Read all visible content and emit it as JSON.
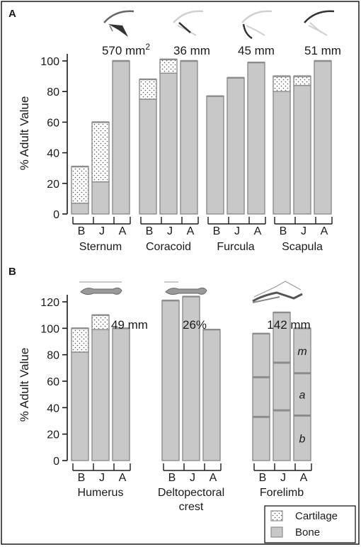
{
  "panels": [
    {
      "label": "A",
      "ylabel": "% Adult Value",
      "ylim": [
        0,
        100
      ],
      "yticks": [
        0,
        20,
        40,
        60,
        80,
        100
      ]
    },
    {
      "label": "B",
      "ylabel": "% Adult Value",
      "ylim": [
        0,
        120
      ],
      "yticks": [
        0,
        20,
        40,
        60,
        80,
        100,
        120
      ]
    }
  ],
  "legend": {
    "items": [
      "Cartilage",
      "Bone"
    ],
    "position": "bottom-right"
  },
  "chart_data": [
    {
      "type": "bar",
      "panel": "A",
      "ylabel": "% Adult Value",
      "ylim": [
        0,
        100
      ],
      "stacked_components": [
        "Bone",
        "Cartilage"
      ],
      "groups": [
        {
          "name": "Sternum",
          "annotation": "570 mm²",
          "categories": [
            "B",
            "J",
            "A"
          ],
          "bone": [
            7,
            21,
            100
          ],
          "cartilage": [
            24,
            39,
            0
          ]
        },
        {
          "name": "Coracoid",
          "annotation": "36 mm",
          "categories": [
            "B",
            "J",
            "A"
          ],
          "bone": [
            75,
            92,
            100
          ],
          "cartilage": [
            13,
            9,
            0
          ]
        },
        {
          "name": "Furcula",
          "annotation": "45 mm",
          "categories": [
            "B",
            "J",
            "A"
          ],
          "bone": [
            77,
            89,
            99
          ],
          "cartilage": [
            0,
            0,
            0
          ]
        },
        {
          "name": "Scapula",
          "annotation": "51 mm",
          "categories": [
            "B",
            "J",
            "A"
          ],
          "bone": [
            80,
            84,
            100
          ],
          "cartilage": [
            10,
            6,
            0
          ]
        }
      ]
    },
    {
      "type": "bar",
      "panel": "B",
      "ylabel": "% Adult Value",
      "ylim": [
        0,
        120
      ],
      "groups": [
        {
          "name": "Humerus",
          "annotation": "49 mm",
          "categories": [
            "B",
            "J",
            "A"
          ],
          "bone": [
            82,
            99,
            100
          ],
          "cartilage": [
            18,
            11,
            0
          ]
        },
        {
          "name": "Deltopectoral crest",
          "annotation": "26%",
          "categories": [
            "B",
            "J",
            "A"
          ],
          "bone": [
            121,
            124,
            99
          ],
          "cartilage": [
            0,
            0,
            0
          ]
        },
        {
          "name": "Forelimb",
          "annotation": "142 mm",
          "categories": [
            "B",
            "J",
            "A"
          ],
          "bone": [
            96,
            112,
            100
          ],
          "cartilage": [
            0,
            0,
            0
          ],
          "segment_labels": [
            "b",
            "a",
            "m"
          ],
          "segment_boundaries": [
            [
              33,
              63
            ],
            [
              38,
              74
            ],
            [
              34,
              66
            ]
          ]
        }
      ]
    }
  ]
}
